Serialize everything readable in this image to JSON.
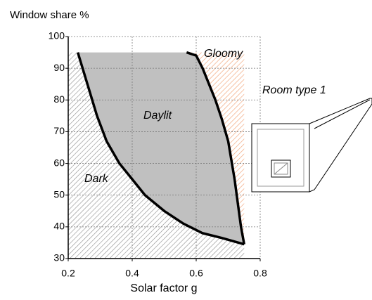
{
  "chart_data": {
    "type": "area",
    "y_label": "Window share %",
    "x_label": "Solar factor g",
    "xlim": [
      0.2,
      0.8
    ],
    "ylim": [
      30,
      100
    ],
    "xticks": [
      0.2,
      0.4,
      0.6,
      0.8
    ],
    "yticks": [
      30,
      40,
      50,
      60,
      70,
      80,
      90,
      100
    ],
    "grid": true,
    "series": [
      {
        "color": "#000000",
        "x": [
          0.23,
          0.26,
          0.29,
          0.32,
          0.36,
          0.4,
          0.44,
          0.5,
          0.56,
          0.62,
          0.68,
          0.75
        ],
        "values": [
          95,
          85,
          75,
          67,
          60,
          55,
          50,
          45,
          41,
          38,
          36.5,
          34.5
        ]
      },
      {
        "color": "#000000",
        "x": [
          0.57,
          0.6,
          0.62,
          0.64,
          0.66,
          0.68,
          0.7,
          0.72,
          0.74,
          0.75
        ],
        "values": [
          95,
          94,
          90,
          85,
          80,
          74,
          67,
          55,
          40,
          34.5
        ]
      }
    ],
    "daylit_color": "#c0c0c0",
    "dark_hatch_color": "#8c8c8c",
    "gloomy_hatch_color": "#f2a87e",
    "annotations": [
      "Dark",
      "Daylit",
      "Gloomy",
      "Room type 1"
    ]
  }
}
